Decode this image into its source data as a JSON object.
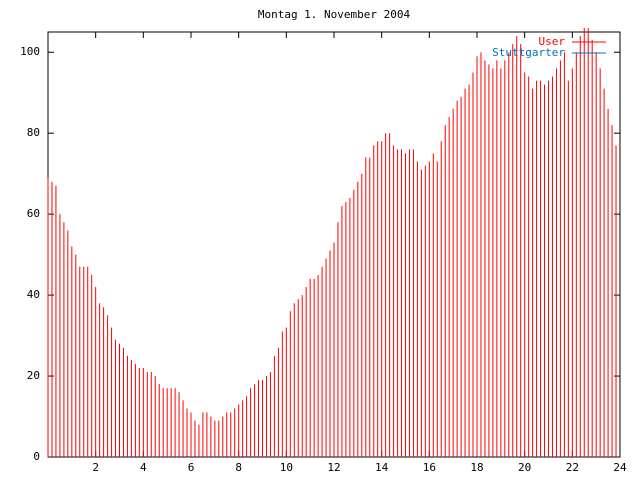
{
  "chart_data": {
    "type": "impulse",
    "title": "Montag 1. November 2004",
    "x": [
      0,
      0.167,
      0.333,
      0.5,
      0.667,
      0.833,
      1,
      1.167,
      1.333,
      1.5,
      1.667,
      1.833,
      2,
      2.167,
      2.333,
      2.5,
      2.667,
      2.833,
      3,
      3.167,
      3.333,
      3.5,
      3.667,
      3.833,
      4,
      4.167,
      4.333,
      4.5,
      4.667,
      4.833,
      5,
      5.167,
      5.333,
      5.5,
      5.667,
      5.833,
      6,
      6.167,
      6.333,
      6.5,
      6.667,
      6.833,
      7,
      7.167,
      7.333,
      7.5,
      7.667,
      7.833,
      8,
      8.167,
      8.333,
      8.5,
      8.667,
      8.833,
      9,
      9.167,
      9.333,
      9.5,
      9.667,
      9.833,
      10,
      10.167,
      10.333,
      10.5,
      10.667,
      10.833,
      11,
      11.167,
      11.333,
      11.5,
      11.667,
      11.833,
      12,
      12.167,
      12.333,
      12.5,
      12.667,
      12.833,
      13,
      13.167,
      13.333,
      13.5,
      13.667,
      13.833,
      14,
      14.167,
      14.333,
      14.5,
      14.667,
      14.833,
      15,
      15.167,
      15.333,
      15.5,
      15.667,
      15.833,
      16,
      16.167,
      16.333,
      16.5,
      16.667,
      16.833,
      17,
      17.167,
      17.333,
      17.5,
      17.667,
      17.833,
      18,
      18.167,
      18.333,
      18.5,
      18.667,
      18.833,
      19,
      19.167,
      19.333,
      19.5,
      19.667,
      19.833,
      20,
      20.167,
      20.333,
      20.5,
      20.667,
      20.833,
      21,
      21.167,
      21.333,
      21.5,
      21.667,
      21.833,
      22,
      22.167,
      22.333,
      22.5,
      22.667,
      22.833,
      23,
      23.167,
      23.333,
      23.5,
      23.667,
      23.833
    ],
    "series": [
      {
        "name": "User",
        "color": "#ff0000",
        "values": [
          69,
          68,
          67,
          60,
          58,
          56,
          52,
          50,
          47,
          47,
          47,
          45,
          42,
          38,
          37,
          35,
          32,
          29,
          28,
          27,
          25,
          24,
          23,
          22,
          22,
          21,
          21,
          20,
          18,
          17,
          17,
          17,
          17,
          16,
          14,
          12,
          11,
          9,
          8,
          11,
          11,
          10,
          9,
          9,
          10,
          11,
          11,
          12,
          13,
          14,
          15,
          17,
          18,
          19,
          19,
          20,
          21,
          25,
          27,
          31,
          32,
          36,
          38,
          39,
          40,
          42,
          44,
          44,
          45,
          47,
          49,
          51,
          53,
          58,
          62,
          63,
          64,
          66,
          68,
          70,
          74,
          74,
          77,
          78,
          78,
          80,
          80,
          77,
          76,
          76,
          75,
          76,
          76,
          73,
          71,
          72,
          73,
          75,
          73,
          78,
          82,
          84,
          86,
          88,
          89,
          91,
          92,
          95,
          99,
          100,
          98,
          97,
          96,
          98,
          96,
          98,
          100,
          102,
          104,
          102,
          95,
          94,
          91,
          93,
          93,
          92,
          93,
          94,
          96,
          98,
          100,
          93,
          96,
          100,
          104,
          106,
          106,
          103,
          100,
          96,
          91,
          86,
          82,
          77
        ]
      },
      {
        "name": "Stuttgarter",
        "color": "#0070c0",
        "values": [
          0,
          0,
          0,
          0,
          0,
          0,
          0,
          0,
          0,
          0,
          0,
          0,
          0,
          0,
          0,
          0,
          0,
          0,
          0,
          0,
          0,
          0,
          0,
          0,
          0,
          0,
          0,
          0,
          0,
          0,
          0,
          0,
          0,
          0,
          0,
          0,
          0,
          0,
          0,
          0,
          0,
          0,
          0,
          0,
          0,
          0,
          0,
          0,
          0,
          0,
          0,
          0,
          0,
          0,
          0,
          0,
          0,
          0,
          0,
          0,
          0,
          0,
          0,
          0,
          0,
          0,
          0,
          0,
          0,
          0,
          0,
          0,
          0,
          0,
          0,
          0,
          0,
          0,
          0,
          0,
          0,
          0,
          0,
          0,
          0,
          0,
          0,
          0,
          0,
          0,
          0,
          0,
          0,
          0,
          0,
          0,
          0,
          0,
          0,
          0,
          0,
          0,
          0,
          0,
          0,
          0,
          0,
          0,
          0,
          0,
          0,
          0,
          0,
          0,
          0,
          0,
          0,
          0,
          0,
          0,
          0,
          0,
          0,
          0,
          0,
          0,
          0,
          0,
          0,
          0,
          0,
          0,
          0,
          0,
          0,
          0,
          0,
          0,
          0,
          0,
          0,
          0,
          0,
          0
        ]
      }
    ],
    "xlim": [
      0,
      24
    ],
    "xticks": [
      2,
      4,
      6,
      8,
      10,
      12,
      14,
      16,
      18,
      20,
      22,
      24
    ],
    "ylim": [
      0,
      105
    ],
    "yticks": [
      0,
      20,
      40,
      60,
      80,
      100
    ]
  }
}
